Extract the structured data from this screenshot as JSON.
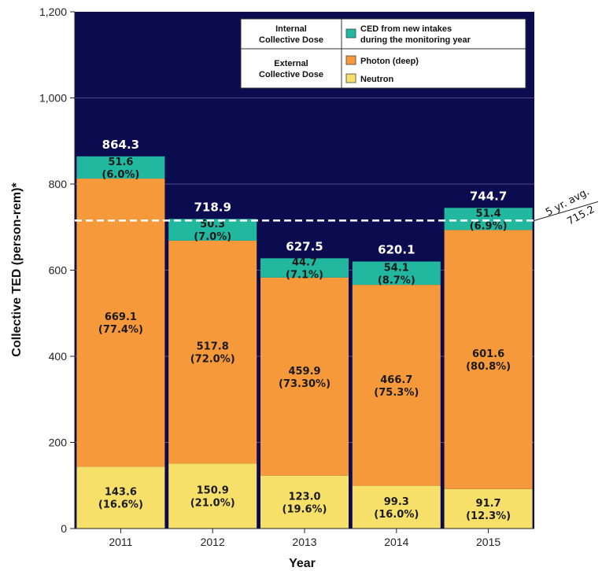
{
  "chart_data": {
    "type": "bar",
    "stacked": true,
    "categories": [
      "2011",
      "2012",
      "2013",
      "2014",
      "2015"
    ],
    "xlabel": "Year",
    "ylabel": "Collective TED (person-rem)*",
    "ylim": [
      0,
      1200
    ],
    "yticks": [
      "0",
      "200",
      "400",
      "600",
      "800",
      "1,000",
      "1,200"
    ],
    "ytick_values": [
      0,
      200,
      400,
      600,
      800,
      1000,
      1200
    ],
    "grid": true,
    "series": [
      {
        "name": "Neutron",
        "color": "#f7e06a",
        "values": [
          143.6,
          150.9,
          123.0,
          99.3,
          91.7
        ],
        "labels": [
          "143.6",
          "150.9",
          "123.0",
          "99.3",
          "91.7"
        ],
        "percents": [
          "(16.6%)",
          "(21.0%)",
          "(19.6%)",
          "(16.0%)",
          "(12.3%)"
        ]
      },
      {
        "name": "Photon (deep)",
        "color": "#f6993a",
        "values": [
          669.1,
          517.8,
          459.9,
          466.7,
          601.6
        ],
        "labels": [
          "669.1",
          "517.8",
          "459.9",
          "466.7",
          "601.6"
        ],
        "percents": [
          "(77.4%)",
          "(72.0%)",
          "(73.30%)",
          "(75.3%)",
          "(80.8%)"
        ]
      },
      {
        "name": "CED from new intakes during the monitoring year",
        "color": "#22b8a0",
        "values": [
          51.6,
          50.3,
          44.7,
          54.1,
          51.4
        ],
        "labels": [
          "51.6",
          "50.3",
          "44.7",
          "54.1",
          "51.4"
        ],
        "percents": [
          "(6.0%)",
          "(7.0%)",
          "(7.1%)",
          "(8.7%)",
          "(6.9%)"
        ]
      }
    ],
    "totals": [
      864.3,
      718.9,
      627.5,
      620.1,
      744.7
    ],
    "total_labels": [
      "864.3",
      "718.9",
      "627.5",
      "620.1",
      "744.7"
    ],
    "reference_line": {
      "value": 715.2,
      "label_top": "5 yr. avg.",
      "label_bottom": "715.2"
    },
    "legend": {
      "placement": "top-right",
      "groups": [
        {
          "label_lines": [
            "Internal",
            "Collective Dose"
          ],
          "entries": [
            {
              "series_index": 2,
              "label_lines": [
                "CED from new intakes",
                "during the monitoring year"
              ]
            }
          ]
        },
        {
          "label_lines": [
            "External",
            "Collective Dose"
          ],
          "entries": [
            {
              "series_index": 1,
              "label_lines": [
                "Photon (deep)"
              ]
            },
            {
              "series_index": 0,
              "label_lines": [
                "Neutron"
              ]
            }
          ]
        }
      ]
    },
    "colors": {
      "plot_background": "#0b0b4f",
      "grid": "#4a4a8a",
      "avg_line": "#ffffff"
    }
  }
}
